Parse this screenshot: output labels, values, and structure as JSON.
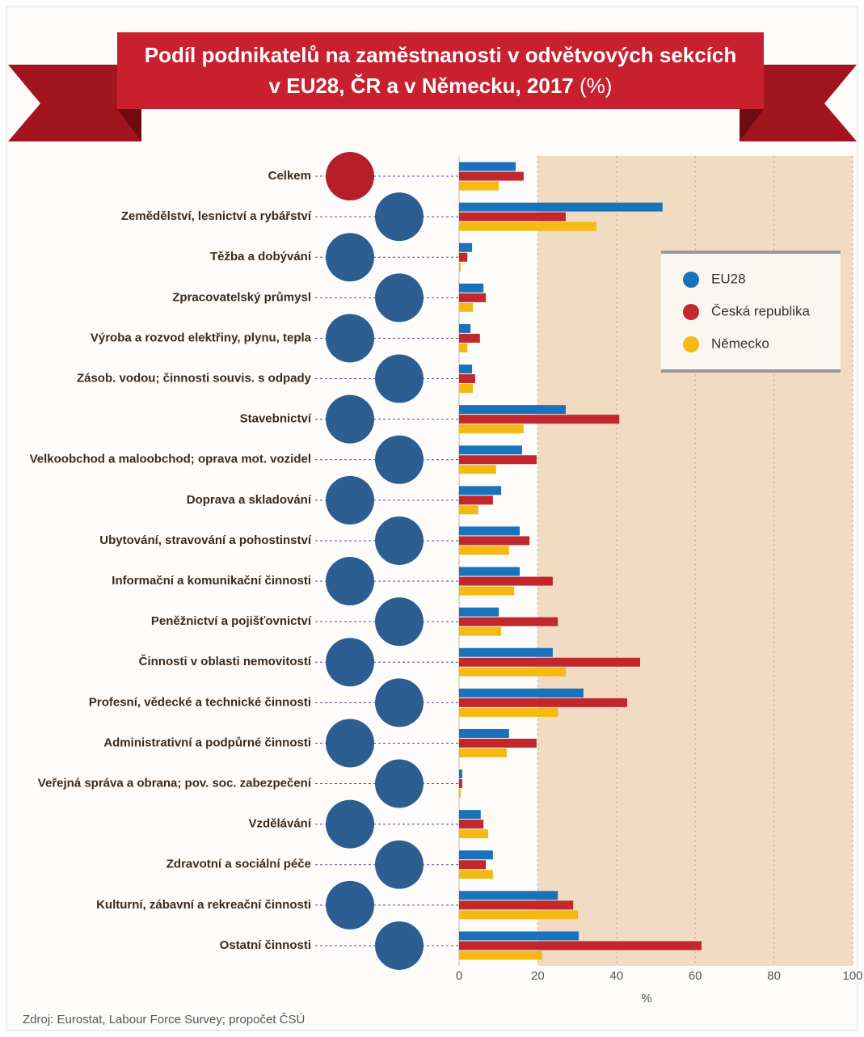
{
  "chart_data": {
    "type": "hbar",
    "title": [
      "Podíl podnikatelů na zaměstnanosti v odvětvových sekcích",
      "v EU28, ČR a v Německu, 2017"
    ],
    "title_unit": "(%)",
    "categories": [
      "Celkem",
      "Zemědělství, lesnictví a rybářství",
      "Těžba a dobývání",
      "Zpracovatelský průmysl",
      "Výroba a rozvod elektřiny, plynu, tepla",
      "Zásob. vodou; činnosti souvis. s odpady",
      "Stavebnictví",
      "Velkoobchod a maloobchod; oprava mot. vozidel",
      "Doprava a skladování",
      "Ubytování, stravování a pohostinství",
      "Informační a komunikační činnosti",
      "Peněžnictví a pojišťovnictví",
      "Činnosti v oblasti nemovitostí",
      "Profesní, vědecké a technické činnosti",
      "Administrativní a podpůrné činnosti",
      "Veřejná správa a obrana; pov. soc. zabezpečení",
      "Vzdělávání",
      "Zdravotní a sociální péče",
      "Kulturní, zábavní a rekreační činnosti",
      "Ostatní činnosti"
    ],
    "series": [
      {
        "name": "EU28",
        "color": "#1a73ba",
        "values": [
          14.4,
          51.7,
          3.3,
          6.2,
          2.9,
          3.3,
          27.1,
          16.0,
          10.7,
          15.4,
          15.4,
          10.1,
          23.8,
          31.6,
          12.7,
          0.8,
          5.5,
          8.6,
          25.1,
          30.4
        ]
      },
      {
        "name": "Česká republika",
        "color": "#c1272d",
        "values": [
          16.4,
          27.1,
          2.1,
          6.8,
          5.3,
          4.1,
          40.7,
          19.7,
          8.6,
          17.9,
          23.8,
          25.1,
          46.0,
          42.7,
          19.7,
          0.8,
          6.2,
          6.8,
          29.0,
          61.6
        ]
      },
      {
        "name": "Německo",
        "color": "#f4b912",
        "values": [
          10.1,
          34.9,
          0.4,
          3.5,
          2.1,
          3.5,
          16.4,
          9.4,
          4.9,
          12.7,
          14.0,
          10.7,
          27.1,
          25.1,
          12.1,
          0.4,
          7.4,
          8.6,
          30.2,
          21.1
        ]
      }
    ],
    "xlabel": "%",
    "xlim": [
      0,
      100
    ],
    "xticks": [
      0,
      20,
      40,
      60,
      80,
      100
    ],
    "source": "Zdroj: Eurostat, Labour Force Survey; propočet ČSÚ"
  }
}
